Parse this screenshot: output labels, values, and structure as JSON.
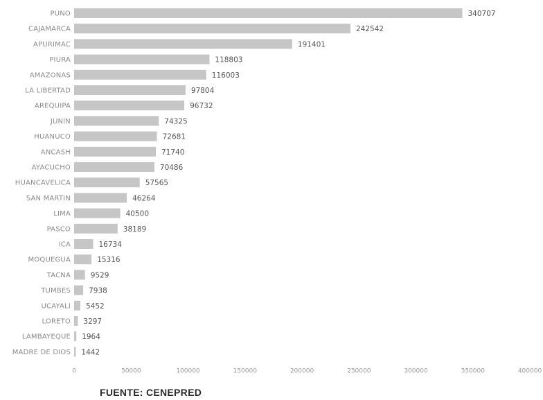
{
  "chart_data": {
    "type": "bar",
    "orientation": "horizontal",
    "title": "",
    "xlabel": "",
    "ylabel": "",
    "categories": [
      "PUNO",
      "CAJAMARCA",
      "APURIMAC",
      "PIURA",
      "AMAZONAS",
      "LA LIBERTAD",
      "AREQUIPA",
      "JUNIN",
      "HUANUCO",
      "ANCASH",
      "AYACUCHO",
      "HUANCAVELICA",
      "SAN MARTIN",
      "LIMA",
      "PASCO",
      "ICA",
      "MOQUEGUA",
      "TACNA",
      "TUMBES",
      "UCAYALI",
      "LORETO",
      "LAMBAYEQUE",
      "MADRE DE DIOS"
    ],
    "values": [
      340707,
      242542,
      191401,
      118803,
      116003,
      97804,
      96732,
      74325,
      72681,
      71740,
      70486,
      57565,
      46264,
      40500,
      38189,
      16734,
      15316,
      9529,
      7938,
      5452,
      3297,
      1964,
      1442
    ],
    "xlim": [
      0,
      400000
    ],
    "xticks": [
      0,
      50000,
      100000,
      150000,
      200000,
      250000,
      300000,
      350000,
      400000
    ],
    "xtick_labels": [
      "0",
      "50000",
      "100000",
      "150000",
      "200000",
      "250000",
      "300000",
      "350000",
      "400000"
    ],
    "grid": false,
    "legend": "none",
    "bar_color": "#c6c6c6"
  },
  "footer": {
    "source": "FUENTE: CENEPRED"
  }
}
